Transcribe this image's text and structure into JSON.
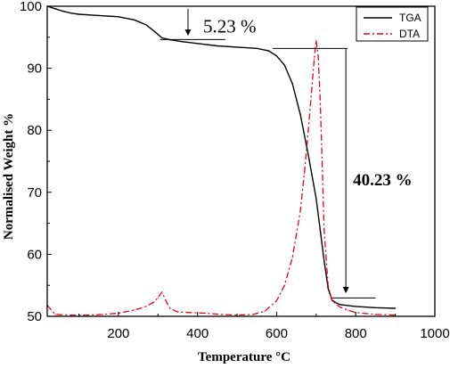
{
  "chart_data": {
    "type": "line",
    "xlabel": "Temperature °C",
    "ylabel": "Normalised Weight %",
    "xlim": [
      20,
      1000
    ],
    "ylim": [
      50,
      100
    ],
    "xticks": [
      200,
      400,
      600,
      800,
      1000
    ],
    "yticks": [
      50,
      60,
      70,
      80,
      90,
      100
    ],
    "grid": false,
    "legend": {
      "position": "top-right",
      "entries": [
        "TGA",
        "DTA"
      ]
    },
    "series": [
      {
        "name": "TGA",
        "color": "#000000",
        "style": "solid",
        "x": [
          20,
          40,
          60,
          80,
          100,
          150,
          200,
          240,
          270,
          290,
          310,
          330,
          360,
          400,
          450,
          500,
          550,
          580,
          600,
          620,
          640,
          660,
          680,
          700,
          710,
          720,
          730,
          740,
          750,
          760,
          800,
          850,
          900
        ],
        "y": [
          100,
          99.6,
          99.2,
          98.9,
          98.7,
          98.5,
          98.3,
          97.8,
          97.0,
          96.0,
          94.9,
          94.6,
          94.3,
          94.0,
          93.6,
          93.4,
          93.2,
          92.8,
          92.0,
          90.5,
          87.5,
          82.5,
          76.0,
          69.0,
          64.0,
          59.0,
          54.5,
          52.6,
          52.2,
          51.9,
          51.6,
          51.4,
          51.3
        ]
      },
      {
        "name": "DTA",
        "color": "#e8001c",
        "style": "dash-dot",
        "x": [
          20,
          40,
          80,
          120,
          160,
          200,
          240,
          270,
          290,
          300,
          310,
          320,
          330,
          350,
          380,
          420,
          460,
          500,
          540,
          570,
          600,
          620,
          640,
          660,
          670,
          680,
          690,
          695,
          700,
          705,
          710,
          715,
          720,
          730,
          740,
          760,
          780,
          800,
          850,
          900
        ],
        "y": [
          51.8,
          50.3,
          50.2,
          50.2,
          50.3,
          50.5,
          51.0,
          51.6,
          52.3,
          53.0,
          53.9,
          52.5,
          51.3,
          50.7,
          50.6,
          50.5,
          50.3,
          50.2,
          50.3,
          50.8,
          52.5,
          55.0,
          59.5,
          67.0,
          73.0,
          80.0,
          87.5,
          91.5,
          94.5,
          92.0,
          85.0,
          75.0,
          64.0,
          55.0,
          52.5,
          51.5,
          51.0,
          50.6,
          50.3,
          50.2
        ]
      }
    ],
    "annotations": [
      {
        "text": "5.23 %",
        "from": 100,
        "to": 94.77,
        "at_x": 385
      },
      {
        "text": "40.23 %",
        "from": 93.2,
        "to": 52.97,
        "at_x": 775
      }
    ]
  }
}
